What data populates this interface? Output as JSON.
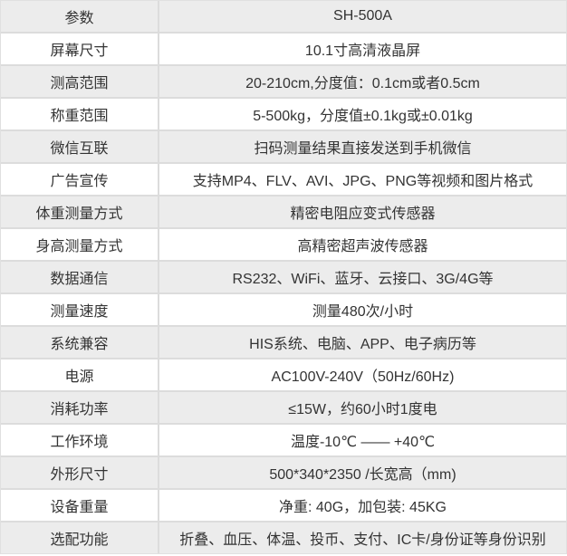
{
  "product_model": "SH-500A",
  "colors": {
    "alt_row_bg": "#ececec",
    "row_bg": "#ffffff",
    "border": "#dcdcdc",
    "outer_border": "#e0e0e0",
    "text": "#333333"
  },
  "spec_table": {
    "header": {
      "param": "参数",
      "value": "SH-500A"
    },
    "rows": [
      {
        "param": "屏幕尺寸",
        "value": "10.1寸高清液晶屏"
      },
      {
        "param": "测高范围",
        "value": "20-210cm,分度值：0.1cm或者0.5cm"
      },
      {
        "param": "称重范围",
        "value": "5-500kg，分度值±0.1kg或±0.01kg"
      },
      {
        "param": "微信互联",
        "value": "扫码测量结果直接发送到手机微信"
      },
      {
        "param": "广告宣传",
        "value": "支持MP4、FLV、AVI、JPG、PNG等视频和图片格式"
      },
      {
        "param": "体重测量方式",
        "value": "精密电阻应变式传感器"
      },
      {
        "param": "身高测量方式",
        "value": "高精密超声波传感器"
      },
      {
        "param": "数据通信",
        "value": "RS232、WiFi、蓝牙、云接口、3G/4G等"
      },
      {
        "param": "测量速度",
        "value": "测量480次/小时"
      },
      {
        "param": "系统兼容",
        "value": "HIS系统、电脑、APP、电子病历等"
      },
      {
        "param": "电源",
        "value": "AC100V-240V（50Hz/60Hz)"
      },
      {
        "param": "消耗功率",
        "value": "≤15W，约60小时1度电"
      },
      {
        "param": "工作环境",
        "value": "温度-10℃ —— +40℃"
      },
      {
        "param": "外形尺寸",
        "value": "500*340*2350 /长宽高（mm)"
      },
      {
        "param": "设备重量",
        "value": "净重: 40G，加包装: 45KG"
      },
      {
        "param": "选配功能",
        "value": "折叠、血压、体温、投币、支付、IC卡/身份证等身份识别"
      }
    ]
  }
}
